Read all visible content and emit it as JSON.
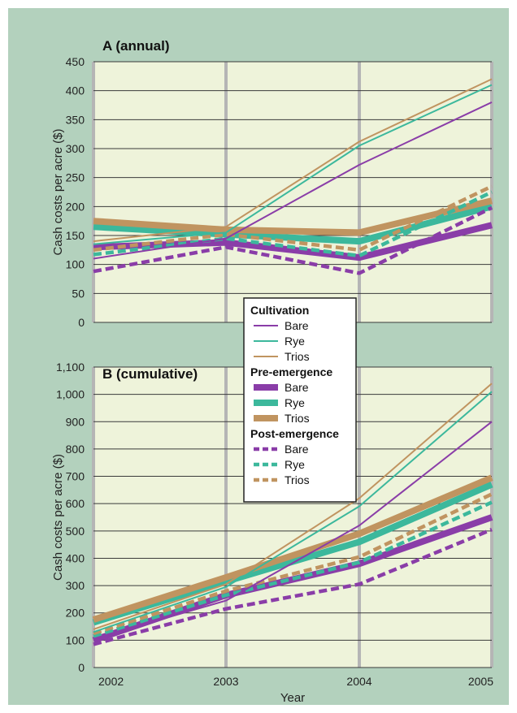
{
  "colors": {
    "outer_bg": "#b3d1bd",
    "plot_bg": "#eef3da",
    "grid_h": "#3a3a3a",
    "grid_v": "#b5b5b5",
    "bare": "#8a3da8",
    "rye": "#3cb89c",
    "trios": "#c09460"
  },
  "chart_data": [
    {
      "type": "line",
      "title": "A (annual)",
      "ylabel": "Cash costs per acre ($)",
      "xlabel": "",
      "x": [
        2002,
        2003,
        2004,
        2005
      ],
      "ylim": [
        0,
        450
      ],
      "yticks": [
        0,
        50,
        100,
        150,
        200,
        250,
        300,
        350,
        400,
        450
      ],
      "ytick_labels": [
        "0",
        "50",
        "100",
        "150",
        "200",
        "250",
        "300",
        "350",
        "400",
        "450"
      ],
      "grid": true,
      "series": [
        {
          "group": "Cultivation",
          "name": "Bare",
          "style": "thin",
          "color": "#8a3da8",
          "values": [
            110,
            145,
            272,
            380
          ]
        },
        {
          "group": "Cultivation",
          "name": "Rye",
          "style": "thin",
          "color": "#3cb89c",
          "values": [
            135,
            155,
            305,
            410
          ]
        },
        {
          "group": "Cultivation",
          "name": "Trios",
          "style": "thin",
          "color": "#c09460",
          "values": [
            140,
            165,
            312,
            420
          ]
        },
        {
          "group": "Pre-emergence",
          "name": "Bare",
          "style": "thick",
          "color": "#8a3da8",
          "values": [
            130,
            138,
            112,
            168
          ]
        },
        {
          "group": "Pre-emergence",
          "name": "Rye",
          "style": "thick",
          "color": "#3cb89c",
          "values": [
            165,
            152,
            140,
            200
          ]
        },
        {
          "group": "Pre-emergence",
          "name": "Trios",
          "style": "thick",
          "color": "#c09460",
          "values": [
            175,
            160,
            155,
            210
          ]
        },
        {
          "group": "Post-emergence",
          "name": "Bare",
          "style": "dashed",
          "color": "#8a3da8",
          "values": [
            88,
            130,
            85,
            198
          ]
        },
        {
          "group": "Post-emergence",
          "name": "Rye",
          "style": "dashed",
          "color": "#3cb89c",
          "values": [
            117,
            145,
            115,
            225
          ]
        },
        {
          "group": "Post-emergence",
          "name": "Trios",
          "style": "dashed",
          "color": "#c09460",
          "values": [
            125,
            152,
            125,
            235
          ]
        }
      ]
    },
    {
      "type": "line",
      "title": "B (cumulative)",
      "ylabel": "Cash costs per acre ($)",
      "xlabel": "Year",
      "x": [
        2002,
        2003,
        2004,
        2005
      ],
      "xtick_labels": [
        "2002",
        "2003",
        "2004",
        "2005"
      ],
      "ylim": [
        0,
        1100
      ],
      "yticks": [
        0,
        100,
        200,
        300,
        400,
        500,
        600,
        700,
        800,
        900,
        1000,
        1100
      ],
      "ytick_labels": [
        "0",
        "100",
        "200",
        "300",
        "400",
        "500",
        "600",
        "700",
        "800",
        "900",
        "1,000",
        "1,100"
      ],
      "grid": true,
      "series": [
        {
          "group": "Cultivation",
          "name": "Bare",
          "style": "thin",
          "color": "#8a3da8",
          "values": [
            105,
            245,
            520,
            900
          ]
        },
        {
          "group": "Cultivation",
          "name": "Rye",
          "style": "thin",
          "color": "#3cb89c",
          "values": [
            130,
            295,
            590,
            1010
          ]
        },
        {
          "group": "Cultivation",
          "name": "Trios",
          "style": "thin",
          "color": "#c09460",
          "values": [
            140,
            305,
            620,
            1040
          ]
        },
        {
          "group": "Pre-emergence",
          "name": "Bare",
          "style": "thick",
          "color": "#8a3da8",
          "values": [
            100,
            265,
            380,
            550
          ]
        },
        {
          "group": "Pre-emergence",
          "name": "Rye",
          "style": "thick",
          "color": "#3cb89c",
          "values": [
            165,
            315,
            460,
            670
          ]
        },
        {
          "group": "Pre-emergence",
          "name": "Trios",
          "style": "thick",
          "color": "#c09460",
          "values": [
            175,
            330,
            490,
            695
          ]
        },
        {
          "group": "Post-emergence",
          "name": "Bare",
          "style": "dashed",
          "color": "#8a3da8",
          "values": [
            85,
            215,
            305,
            505
          ]
        },
        {
          "group": "Post-emergence",
          "name": "Rye",
          "style": "dashed",
          "color": "#3cb89c",
          "values": [
            115,
            265,
            385,
            605
          ]
        },
        {
          "group": "Post-emergence",
          "name": "Trios",
          "style": "dashed",
          "color": "#c09460",
          "values": [
            125,
            280,
            405,
            635
          ]
        }
      ]
    }
  ],
  "legend": {
    "placement": "center",
    "groups": [
      {
        "title": "Cultivation",
        "style": "thin",
        "items": [
          "Bare",
          "Rye",
          "Trios"
        ]
      },
      {
        "title": "Pre-emergence",
        "style": "thick",
        "items": [
          "Bare",
          "Rye",
          "Trios"
        ]
      },
      {
        "title": "Post-emergence",
        "style": "dashed",
        "items": [
          "Bare",
          "Rye",
          "Trios"
        ]
      }
    ]
  }
}
